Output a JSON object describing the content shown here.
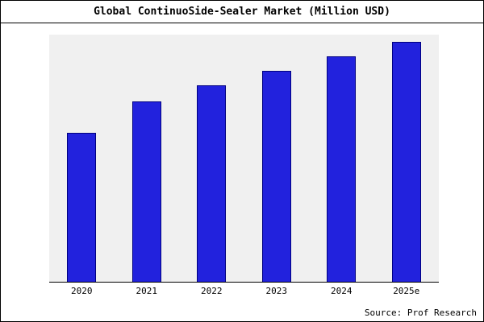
{
  "chart_data": {
    "type": "bar",
    "title": "Global ContinuoSide-Sealer Market (Million USD)",
    "categories": [
      "2020",
      "2021",
      "2022",
      "2023",
      "2024",
      "2025e"
    ],
    "values": [
      62,
      75,
      82,
      88,
      94,
      100
    ],
    "xlabel": "",
    "ylabel": "",
    "ylim": [
      0,
      103
    ],
    "grid": false,
    "legend": "none",
    "bar_color": "#2222dd",
    "bar_border_color": "#000080",
    "plot_background": "#f0f0f0",
    "source": "Source: Prof Research"
  }
}
